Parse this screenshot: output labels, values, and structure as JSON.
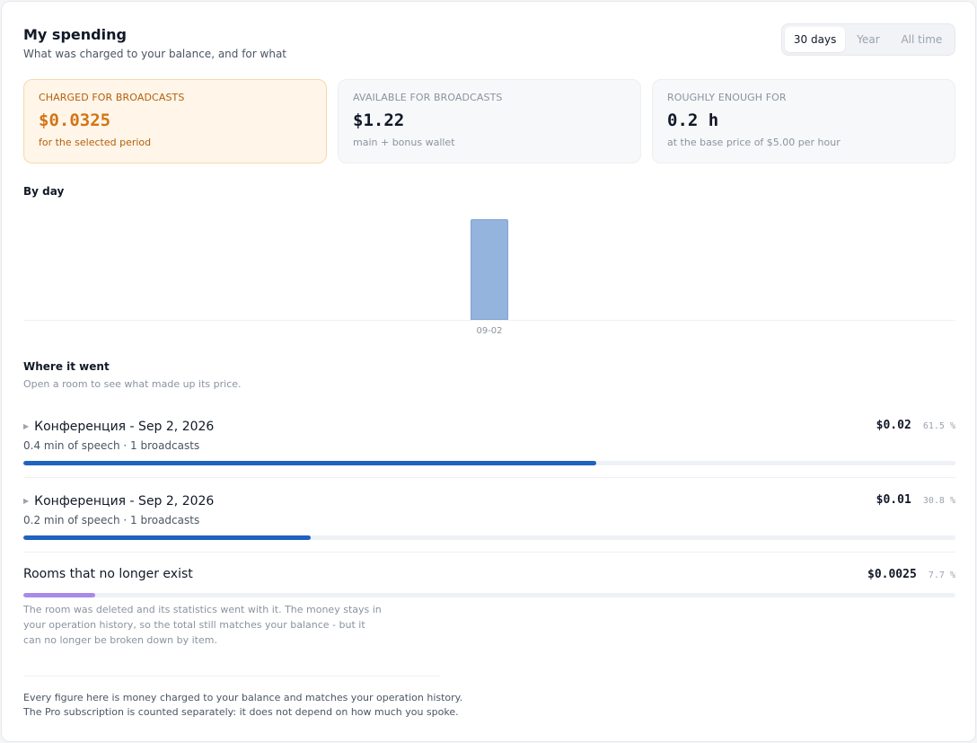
{
  "header": {
    "title": "My spending",
    "subtitle": "What was charged to your balance, and for what"
  },
  "period_tabs": [
    {
      "label": "30 days",
      "active": true
    },
    {
      "label": "Year",
      "active": false
    },
    {
      "label": "All time",
      "active": false
    }
  ],
  "stats": [
    {
      "label": "Charged for broadcasts",
      "value": "$0.0325",
      "note": "for the selected period"
    },
    {
      "label": "Available for broadcasts",
      "value": "$1.22",
      "note": "main + bonus wallet"
    },
    {
      "label": "Roughly enough for",
      "value": "0.2 h",
      "note": "at the base price of $5.00 per hour"
    }
  ],
  "by_day": {
    "title": "By day"
  },
  "chart_data": {
    "type": "bar",
    "categories": [
      "09-02"
    ],
    "values": [
      0.0325
    ],
    "title": "",
    "xlabel": "",
    "ylabel": "",
    "grid": false
  },
  "breakdown": {
    "title": "Where it went",
    "hint": "Open a room to see what made up its price.",
    "rooms": [
      {
        "name": "Конференция - Sep 2, 2026",
        "details": "0.4 min of speech · 1 broadcasts",
        "amount": "$0.02",
        "percent": "61.5 %",
        "share": 0.615,
        "color": "#1e63c0"
      },
      {
        "name": "Конференция - Sep 2, 2026",
        "details": "0.2 min of speech · 1 broadcasts",
        "amount": "$0.01",
        "percent": "30.8 %",
        "share": 0.308,
        "color": "#1e63c0"
      }
    ],
    "deleted": {
      "name": "Rooms that no longer exist",
      "amount": "$0.0025",
      "percent": "7.7 %",
      "share": 0.077,
      "color": "#a88be8",
      "note": "The room was deleted and its statistics went with it. The money stays in your operation history, so the total still matches your balance - but it can no longer be broken down by item."
    }
  },
  "footer": {
    "line1": "Every figure here is money charged to your balance and matches your operation history.",
    "line2": "The Pro subscription is counted separately: it does not depend on how much you spoke."
  },
  "colors": {
    "accent_orange": "#d27516",
    "bar_blue": "#95b4dd",
    "progress_blue": "#1e63c0",
    "progress_purple": "#a88be8"
  }
}
